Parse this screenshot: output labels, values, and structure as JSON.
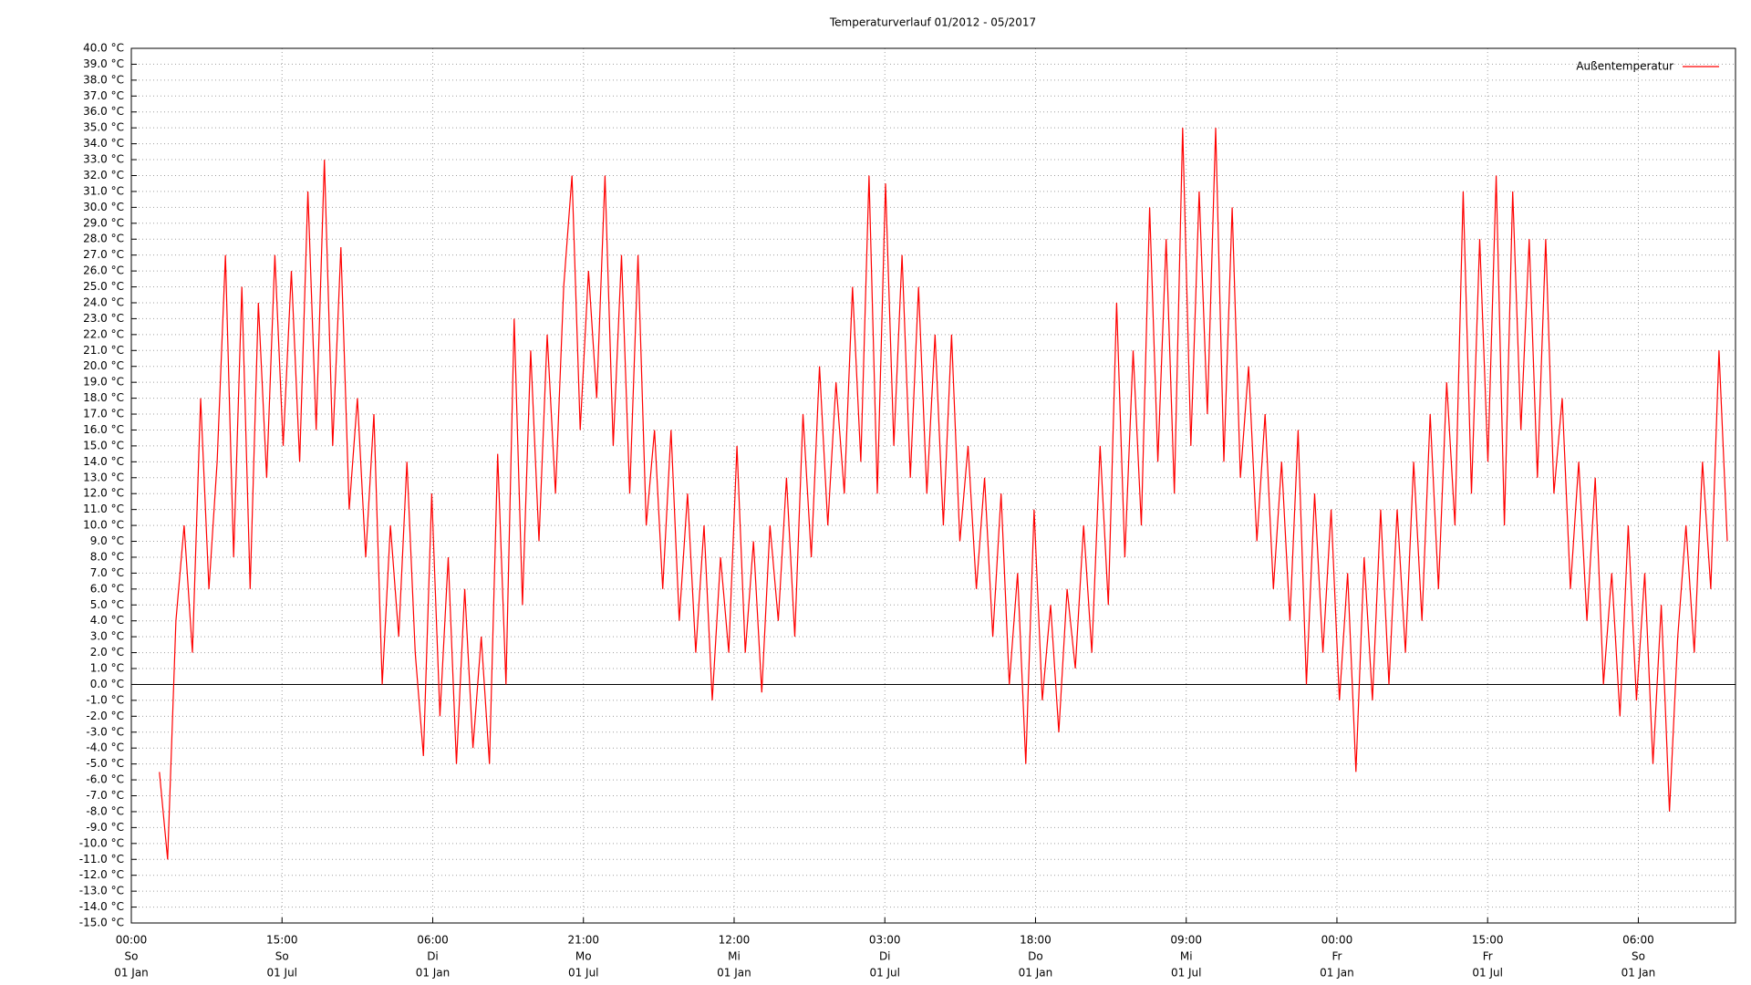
{
  "chart_data": {
    "type": "line",
    "title": "Temperaturverlauf 01/2012 - 05/2017",
    "x": [
      34,
      44,
      54,
      64,
      74,
      84,
      94,
      104,
      114,
      124,
      134,
      144,
      154,
      164,
      174,
      184,
      194,
      204,
      214,
      224,
      234,
      244,
      254,
      264,
      274,
      284,
      294,
      304,
      314,
      324,
      334,
      344,
      354,
      364,
      374,
      384,
      394,
      404,
      414,
      424,
      434,
      444,
      454,
      464,
      474,
      484,
      494,
      504,
      514,
      524,
      534,
      544,
      554,
      564,
      574,
      584,
      594,
      604,
      614,
      624,
      634,
      644,
      654,
      664,
      674,
      684,
      694,
      704,
      714,
      724,
      734,
      744,
      754,
      764,
      774,
      784,
      794,
      804,
      814,
      824,
      834,
      844,
      854,
      864,
      874,
      884,
      894,
      904,
      914,
      924,
      934,
      944,
      954,
      964,
      974,
      984,
      994,
      1004,
      1014,
      1024,
      1034,
      1044,
      1054,
      1064,
      1074,
      1084,
      1094,
      1104,
      1114,
      1124,
      1134,
      1144,
      1154,
      1164,
      1174,
      1184,
      1194,
      1204,
      1214,
      1224,
      1234,
      1244,
      1254,
      1264,
      1274,
      1284,
      1294,
      1304,
      1314,
      1324,
      1334,
      1344,
      1354,
      1364,
      1374,
      1384,
      1394,
      1404,
      1414,
      1424,
      1434,
      1444,
      1454,
      1464,
      1474,
      1484,
      1494,
      1504,
      1514,
      1524,
      1534,
      1544,
      1554,
      1564,
      1574,
      1584,
      1594,
      1604,
      1614,
      1624,
      1634,
      1644,
      1654,
      1664,
      1674,
      1684,
      1694,
      1704,
      1714,
      1724,
      1734,
      1744,
      1754,
      1764,
      1774,
      1784,
      1794,
      1804,
      1814,
      1824,
      1834,
      1844,
      1854,
      1864,
      1874,
      1884,
      1894,
      1904,
      1914,
      1924,
      1934
    ],
    "series": [
      {
        "name": "Außentemperatur",
        "color": "#ff0000",
        "values": [
          -5.5,
          -11,
          4,
          10,
          2,
          18,
          6,
          14,
          27,
          8,
          25,
          6,
          24,
          13,
          27,
          15,
          26,
          14,
          31,
          16,
          33,
          15,
          27.5,
          11,
          18,
          8,
          17,
          0,
          10,
          3,
          14,
          2,
          -4.5,
          12,
          -2,
          8,
          -5,
          6,
          -4,
          3,
          -5,
          14.5,
          0,
          23,
          5,
          21,
          9,
          22,
          12,
          25,
          32,
          16,
          26,
          18,
          32,
          15,
          27,
          12,
          27,
          10,
          16,
          6,
          16,
          4,
          12,
          2,
          10,
          -1,
          8,
          2,
          15,
          2,
          9,
          -0.5,
          10,
          4,
          13,
          3,
          17,
          8,
          20,
          10,
          19,
          12,
          25,
          14,
          32,
          12,
          31.5,
          15,
          27,
          13,
          25,
          12,
          22,
          10,
          22,
          9,
          15,
          6,
          13,
          3,
          12,
          0,
          7,
          -5,
          11,
          -1,
          5,
          -3,
          6,
          1,
          10,
          2,
          15,
          5,
          24,
          8,
          21,
          10,
          30,
          14,
          28,
          12,
          35,
          15,
          31,
          17,
          35,
          14,
          30,
          13,
          20,
          9,
          17,
          6,
          14,
          4,
          16,
          0,
          12,
          2,
          11,
          -1,
          7,
          -5.5,
          8,
          -1,
          11,
          0,
          11,
          2,
          14,
          4,
          17,
          6,
          19,
          10,
          31,
          12,
          28,
          14,
          32,
          10,
          31,
          16,
          28,
          13,
          28,
          12,
          18,
          6,
          14,
          4,
          13,
          0,
          7,
          -2,
          10,
          -1,
          7,
          -5,
          5,
          -8,
          3,
          10,
          2,
          14,
          6,
          21,
          9
        ]
      }
    ],
    "xlim": [
      0,
      1944
    ],
    "xticks": [
      {
        "value": 0,
        "label": [
          "00:00",
          "So",
          "01 Jan"
        ]
      },
      {
        "value": 182.625,
        "label": [
          "15:00",
          "So",
          "01 Jul"
        ]
      },
      {
        "value": 365.25,
        "label": [
          "06:00",
          "Di",
          "01 Jan"
        ]
      },
      {
        "value": 547.875,
        "label": [
          "21:00",
          "Mo",
          "01 Jul"
        ]
      },
      {
        "value": 730.5,
        "label": [
          "12:00",
          "Mi",
          "01 Jan"
        ]
      },
      {
        "value": 913.125,
        "label": [
          "03:00",
          "Di",
          "01 Jul"
        ]
      },
      {
        "value": 1095.75,
        "label": [
          "18:00",
          "Do",
          "01 Jan"
        ]
      },
      {
        "value": 1278.375,
        "label": [
          "09:00",
          "Mi",
          "01 Jul"
        ]
      },
      {
        "value": 1461,
        "label": [
          "00:00",
          "Fr",
          "01 Jan"
        ]
      },
      {
        "value": 1643.625,
        "label": [
          "15:00",
          "Fr",
          "01 Jul"
        ]
      },
      {
        "value": 1826.25,
        "label": [
          "06:00",
          "So",
          "01 Jan"
        ]
      }
    ],
    "ylim": [
      -15,
      40
    ],
    "yticks": [
      {
        "value": 40,
        "label": "40.0 °C"
      },
      {
        "value": 39,
        "label": "39.0 °C"
      },
      {
        "value": 38,
        "label": "38.0 °C"
      },
      {
        "value": 37,
        "label": "37.0 °C"
      },
      {
        "value": 36,
        "label": "36.0 °C"
      },
      {
        "value": 35,
        "label": "35.0 °C"
      },
      {
        "value": 34,
        "label": "34.0 °C"
      },
      {
        "value": 33,
        "label": "33.0 °C"
      },
      {
        "value": 32,
        "label": "32.0 °C"
      },
      {
        "value": 31,
        "label": "31.0 °C"
      },
      {
        "value": 30,
        "label": "30.0 °C"
      },
      {
        "value": 29,
        "label": "29.0 °C"
      },
      {
        "value": 28,
        "label": "28.0 °C"
      },
      {
        "value": 27,
        "label": "27.0 °C"
      },
      {
        "value": 26,
        "label": "26.0 °C"
      },
      {
        "value": 25,
        "label": "25.0 °C"
      },
      {
        "value": 24,
        "label": "24.0 °C"
      },
      {
        "value": 23,
        "label": "23.0 °C"
      },
      {
        "value": 22,
        "label": "22.0 °C"
      },
      {
        "value": 21,
        "label": "21.0 °C"
      },
      {
        "value": 20,
        "label": "20.0 °C"
      },
      {
        "value": 19,
        "label": "19.0 °C"
      },
      {
        "value": 18,
        "label": "18.0 °C"
      },
      {
        "value": 17,
        "label": "17.0 °C"
      },
      {
        "value": 16,
        "label": "16.0 °C"
      },
      {
        "value": 15,
        "label": "15.0 °C"
      },
      {
        "value": 14,
        "label": "14.0 °C"
      },
      {
        "value": 13,
        "label": "13.0 °C"
      },
      {
        "value": 12,
        "label": "12.0 °C"
      },
      {
        "value": 11,
        "label": "11.0 °C"
      },
      {
        "value": 10,
        "label": "10.0 °C"
      },
      {
        "value": 9,
        "label": "9.0 °C"
      },
      {
        "value": 8,
        "label": "8.0 °C"
      },
      {
        "value": 7,
        "label": "7.0 °C"
      },
      {
        "value": 6,
        "label": "6.0 °C"
      },
      {
        "value": 5,
        "label": "5.0 °C"
      },
      {
        "value": 4,
        "label": "4.0 °C"
      },
      {
        "value": 3,
        "label": "3.0 °C"
      },
      {
        "value": 2,
        "label": "2.0 °C"
      },
      {
        "value": 1,
        "label": "1.0 °C"
      },
      {
        "value": 0,
        "label": "0.0 °C"
      },
      {
        "value": -1,
        "label": "-1.0 °C"
      },
      {
        "value": -2,
        "label": "-2.0 °C"
      },
      {
        "value": -3,
        "label": "-3.0 °C"
      },
      {
        "value": -4,
        "label": "-4.0 °C"
      },
      {
        "value": -5,
        "label": "-5.0 °C"
      },
      {
        "value": -6,
        "label": "-6.0 °C"
      },
      {
        "value": -7,
        "label": "-7.0 °C"
      },
      {
        "value": -8,
        "label": "-8.0 °C"
      },
      {
        "value": -9,
        "label": "-9.0 °C"
      },
      {
        "value": -10,
        "label": "-10.0 °C"
      },
      {
        "value": -11,
        "label": "-11.0 °C"
      },
      {
        "value": -12,
        "label": "-12.0 °C"
      },
      {
        "value": -13,
        "label": "-13.0 °C"
      },
      {
        "value": -14,
        "label": "-14.0 °C"
      },
      {
        "value": -15,
        "label": "-15.0 °C"
      }
    ],
    "grid": true,
    "zero_line": true,
    "legend": "top-right"
  }
}
